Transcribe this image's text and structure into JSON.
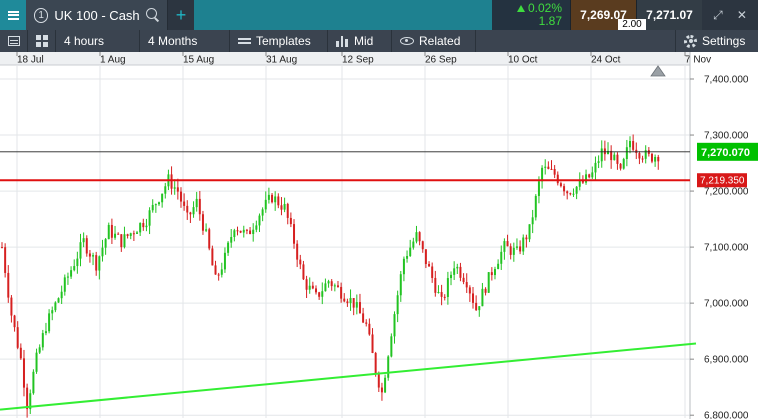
{
  "tab": {
    "number": "1",
    "title": "UK 100 - Cash"
  },
  "quote": {
    "change_pct": "0.02%",
    "change_abs": "1.87",
    "sell": "7,269.07",
    "buy": "7,271.07",
    "spread": "2.00"
  },
  "toolbar": {
    "interval": "4 hours",
    "range": "4 Months",
    "templates": "Templates",
    "price_type": "Mid",
    "related": "Related",
    "settings": "Settings"
  },
  "chart": {
    "date_labels": [
      "18 Jul",
      "1 Aug",
      "15 Aug",
      "31 Aug",
      "12 Sep",
      "26 Sep",
      "10 Oct",
      "24 Oct",
      "7 Nov"
    ],
    "price_labels": [
      "7,400.000",
      "7,300.000",
      "7,200.000",
      "7,100.000",
      "7,000.000",
      "6,900.000",
      "6,800.000"
    ],
    "current_price": "7,270.070",
    "level_price": "7,219.350",
    "colors": {
      "up": "#22c322",
      "down": "#d62020",
      "level": "#e01010",
      "trend": "#33ee33",
      "current": "#00c000"
    }
  },
  "chart_data": {
    "type": "candlestick",
    "ylim": [
      6795,
      7425
    ],
    "price_ticks": [
      7400,
      7300,
      7200,
      7100,
      7000,
      6900,
      6800
    ],
    "horizontal_levels": [
      7270.07,
      7219.35
    ],
    "trendline": {
      "from": [
        "15 Jul",
        6810
      ],
      "to": [
        "10 Nov",
        6928
      ]
    },
    "approx_path": [
      [
        0,
        7100
      ],
      [
        3,
        6980
      ],
      [
        6,
        6900
      ],
      [
        8,
        6820
      ],
      [
        11,
        6900
      ],
      [
        14,
        6960
      ],
      [
        18,
        7010
      ],
      [
        22,
        7060
      ],
      [
        26,
        7110
      ],
      [
        30,
        7070
      ],
      [
        34,
        7130
      ],
      [
        38,
        7110
      ],
      [
        42,
        7130
      ],
      [
        46,
        7150
      ],
      [
        50,
        7190
      ],
      [
        53,
        7220
      ],
      [
        56,
        7200
      ],
      [
        59,
        7150
      ],
      [
        62,
        7180
      ],
      [
        65,
        7120
      ],
      [
        68,
        7040
      ],
      [
        71,
        7080
      ],
      [
        74,
        7140
      ],
      [
        78,
        7120
      ],
      [
        82,
        7160
      ],
      [
        86,
        7190
      ],
      [
        90,
        7170
      ],
      [
        93,
        7110
      ],
      [
        96,
        7040
      ],
      [
        100,
        7010
      ],
      [
        104,
        7040
      ],
      [
        108,
        7020
      ],
      [
        112,
        7000
      ],
      [
        116,
        6960
      ],
      [
        119,
        6880
      ],
      [
        121,
        6840
      ],
      [
        124,
        6950
      ],
      [
        128,
        7080
      ],
      [
        132,
        7120
      ],
      [
        136,
        7060
      ],
      [
        140,
        7000
      ],
      [
        144,
        7070
      ],
      [
        148,
        7040
      ],
      [
        151,
        6990
      ],
      [
        154,
        7030
      ],
      [
        157,
        7070
      ],
      [
        160,
        7100
      ],
      [
        164,
        7090
      ],
      [
        168,
        7130
      ],
      [
        172,
        7240
      ],
      [
        176,
        7230
      ],
      [
        180,
        7200
      ],
      [
        184,
        7210
      ],
      [
        188,
        7230
      ],
      [
        191,
        7270
      ],
      [
        194,
        7265
      ],
      [
        197,
        7230
      ],
      [
        200,
        7290
      ],
      [
        203,
        7270
      ],
      [
        206,
        7260
      ],
      [
        209,
        7265
      ]
    ]
  }
}
